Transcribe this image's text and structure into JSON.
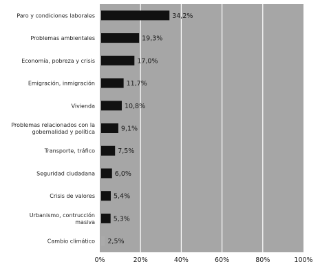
{
  "chart_data": {
    "type": "bar",
    "orientation": "horizontal",
    "categories": [
      [
        "Paro y condiciones laborales"
      ],
      [
        "Problemas ambientales"
      ],
      [
        "Economía, pobreza y crisis"
      ],
      [
        "Emigración, inmigración"
      ],
      [
        "Vivienda"
      ],
      [
        "Problemas relacionados con la",
        "gobernalidad y política"
      ],
      [
        "Transporte,  tráfico"
      ],
      [
        "Seguridad ciudadana"
      ],
      [
        "Crisis de valores"
      ],
      [
        "Urbanismo, contrucción",
        "masiva"
      ],
      [
        "Cambio climático"
      ]
    ],
    "values": [
      34.2,
      19.3,
      17.0,
      11.7,
      10.8,
      9.1,
      7.5,
      6.0,
      5.4,
      5.3,
      2.5
    ],
    "value_labels": [
      "34,2%",
      "19,3%",
      "17,0%",
      "11,7%",
      "10,8%",
      "9,1%",
      "7,5%",
      "6,0%",
      "5,4%",
      "5,3%",
      "2,5%"
    ],
    "xlim": [
      0,
      100
    ],
    "x_ticks": [
      0,
      20,
      40,
      60,
      80,
      100
    ],
    "x_tick_labels": [
      "0%",
      "20%",
      "40%",
      "60%",
      "80%",
      "100%"
    ],
    "grid": "vertical",
    "colors": {
      "plot_background": "#a6a6a6",
      "bar": "#111111",
      "last_bar": "#aaaaaa",
      "grid_line": "#ffffff"
    }
  }
}
